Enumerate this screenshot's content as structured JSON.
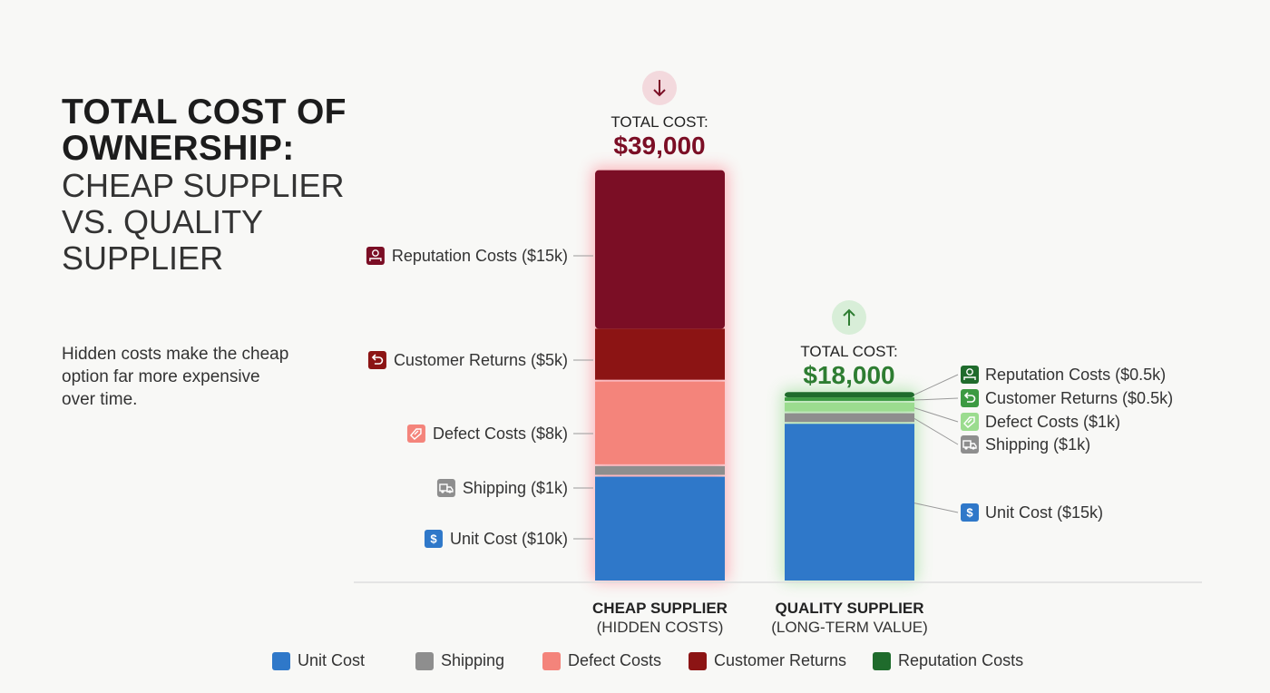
{
  "header": {
    "title_line1": "TOTAL COST OF",
    "title_line2": "OWNERSHIP:",
    "title_line3": "CHEAP SUPPLIER",
    "title_line4": "VS. QUALITY",
    "title_line5": "SUPPLIER",
    "subtitle_line1": "Hidden costs make the cheap",
    "subtitle_line2": "option far more expensive",
    "subtitle_line3": "over time."
  },
  "colors": {
    "unit": "#2f78c9",
    "shipping": "#8e8e8e",
    "defect_cheap": "#f4847b",
    "returns_cheap": "#8c1414",
    "reputation_cheap": "#7b0e25",
    "defect_quality": "#9bdc8f",
    "returns_quality": "#3c9a42",
    "reputation_quality": "#1f6b2c",
    "total_cheap": "#7b0e25",
    "total_quality": "#2e7d32"
  },
  "chart_data": {
    "type": "bar",
    "stacked": true,
    "categories": [
      "CHEAP SUPPLIER",
      "QUALITY SUPPLIER"
    ],
    "category_sublabels": [
      "(HIDDEN COSTS)",
      "(LONG-TERM VALUE)"
    ],
    "unit": "$k",
    "series": [
      {
        "name": "Unit Cost",
        "values": [
          10,
          15
        ],
        "segment_labels": [
          "Unit Cost ($10k)",
          "Unit Cost ($15k)"
        ],
        "icon": "dollar-icon"
      },
      {
        "name": "Shipping",
        "values": [
          1,
          1
        ],
        "segment_labels": [
          "Shipping ($1k)",
          "Shipping ($1k)"
        ],
        "icon": "truck-icon"
      },
      {
        "name": "Defect Costs",
        "values": [
          8,
          1
        ],
        "segment_labels": [
          "Defect Costs ($8k)",
          "Defect Costs ($1k)"
        ],
        "icon": "broken-tag-icon"
      },
      {
        "name": "Customer Returns",
        "values": [
          5,
          0.5
        ],
        "segment_labels": [
          "Customer Returns ($5k)",
          "Customer Returns ($0.5k)"
        ],
        "icon": "return-arrow-icon"
      },
      {
        "name": "Reputation Costs",
        "values": [
          15,
          0.5
        ],
        "segment_labels": [
          "Reputation Costs ($15k)",
          "Reputation Costs ($0.5k)"
        ],
        "icon": "reputation-icon"
      }
    ],
    "totals": [
      {
        "label": "TOTAL COST:",
        "value": "$39,000",
        "trend_icon": "arrow-down-icon"
      },
      {
        "label": "TOTAL COST:",
        "value": "$18,000",
        "trend_icon": "arrow-up-icon"
      }
    ],
    "legend": [
      "Unit Cost",
      "Shipping",
      "Defect Costs",
      "Customer Returns",
      "Reputation Costs"
    ],
    "legend_placement": "bottom",
    "grid": false
  }
}
